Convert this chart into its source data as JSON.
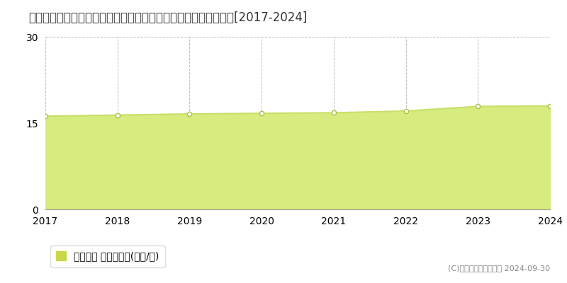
{
  "title": "滋賀県大津市月輪１丁目字烏子９２番２外　基準地価　地価推移[2017-2024]",
  "years": [
    2017,
    2018,
    2019,
    2020,
    2021,
    2022,
    2023,
    2024
  ],
  "values": [
    16.2,
    16.4,
    16.6,
    16.7,
    16.8,
    17.1,
    17.9,
    18.0
  ],
  "ylim": [
    0,
    30
  ],
  "yticks": [
    0,
    15,
    30
  ],
  "line_color": "#c8df6a",
  "fill_color": "#d6ec7e",
  "marker_color": "#ffffff",
  "marker_edge_color": "#aac040",
  "grid_color_h": "#c0c0c0",
  "grid_color_v": "#c0c0c0",
  "bg_color": "#ffffff",
  "legend_label": "基準地価 平均坪単価(万円/坪)",
  "legend_color": "#c8d84a",
  "copyright_text": "(C)土地価格ドットコム 2024-09-30",
  "title_fontsize": 12,
  "axis_fontsize": 10,
  "legend_fontsize": 10,
  "copyright_fontsize": 8
}
